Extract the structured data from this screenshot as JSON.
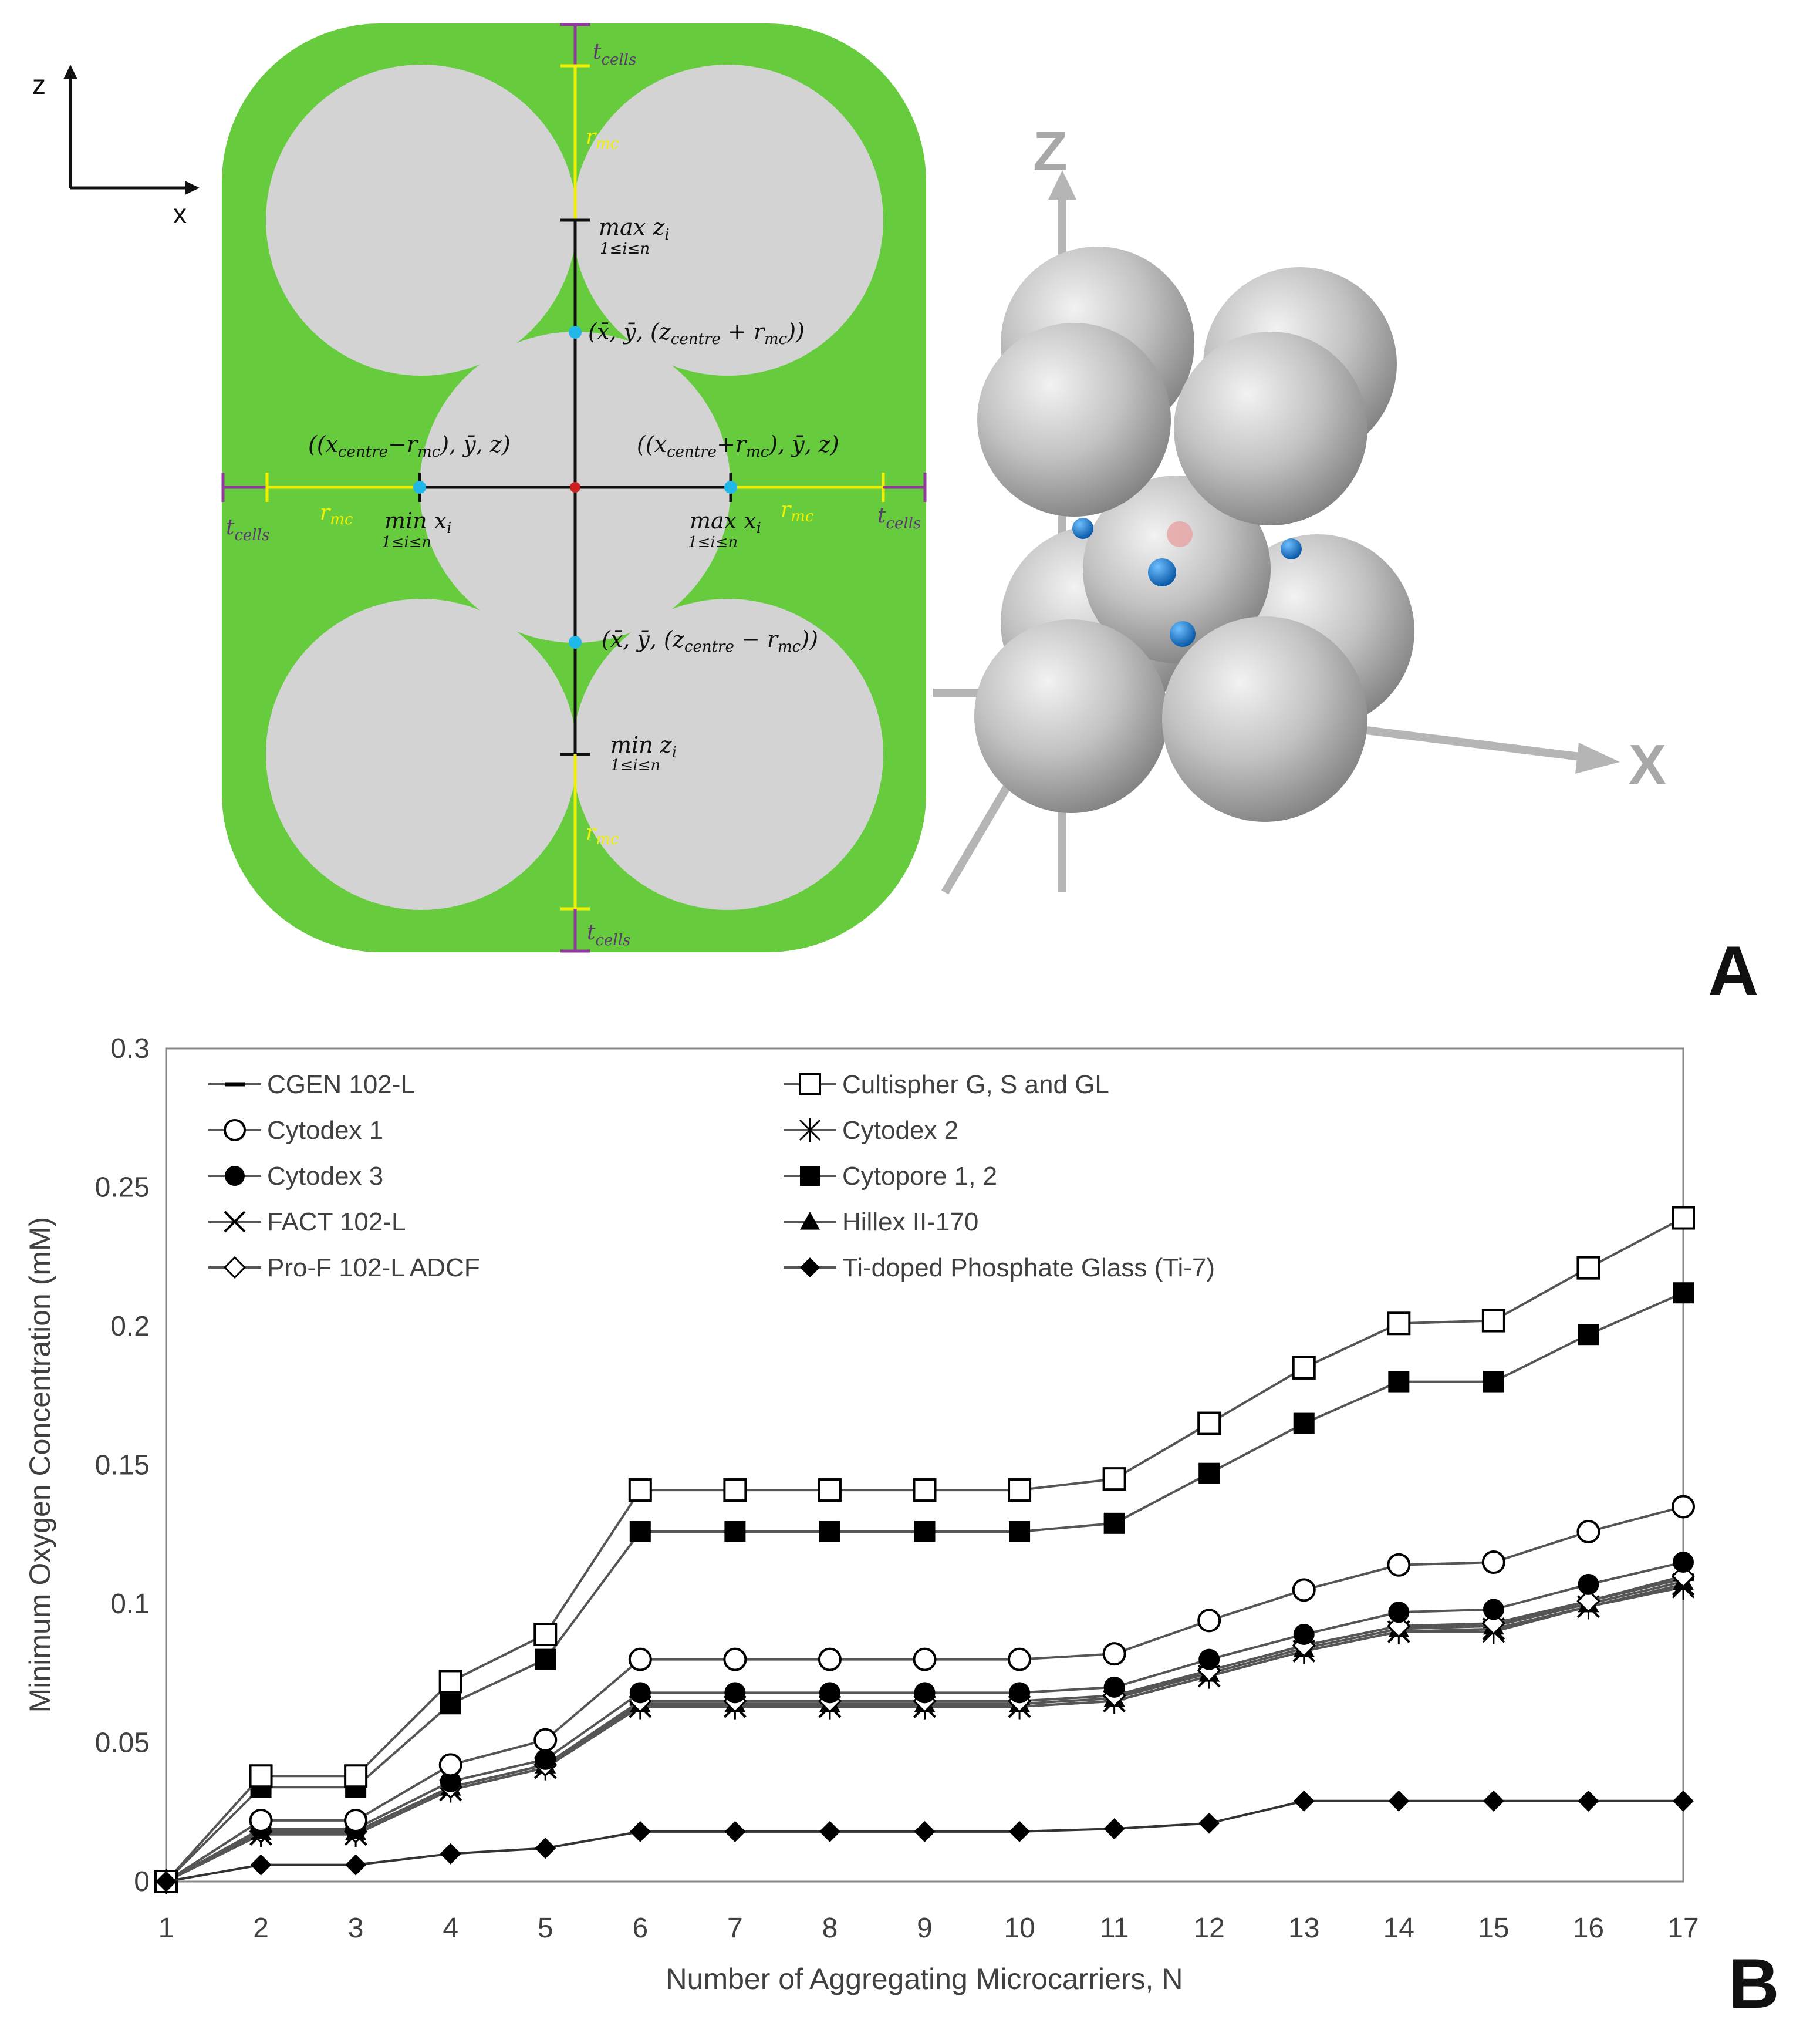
{
  "panel_a": {
    "label": "A",
    "axes_2d": {
      "z": "z",
      "x": "x"
    },
    "axes_3d": {
      "z": "Z",
      "x": "X"
    },
    "annotations": {
      "t_cells": "t",
      "t_cells_sub": "cells",
      "r_mc": "r",
      "r_mc_sub": "mc",
      "max_z_main": "max z",
      "max_z_sub": "i",
      "max_z_range": "1≤i≤n",
      "min_z_main": "min z",
      "min_z_sub": "i",
      "min_z_range": "1≤i≤n",
      "min_x_main": "min x",
      "min_x_sub": "i",
      "min_x_range": "1≤i≤n",
      "max_x_main": "max x",
      "max_x_sub": "i",
      "max_x_range": "1≤i≤n",
      "top_point": "(x̄, ȳ, (z",
      "top_point_sub": "centre",
      "top_point_tail": " + r",
      "top_point_end": "))",
      "bottom_point": "(x̄, ȳ, (z",
      "bottom_point_tail": " − r",
      "left_point": "((x",
      "left_point_mid": "−r",
      "left_point_end": "), ȳ, z)",
      "right_point": "((x",
      "right_point_mid": "+r",
      "right_point_end": "), ȳ, z)"
    },
    "colors": {
      "cells": "#66cc3e",
      "microcarrier": "#d3d3d3",
      "dimension_line": "#f0f000",
      "cell_thickness": "#8e3a9a",
      "point": "#1fb8e8",
      "centre": "#cc1f1f"
    }
  },
  "panel_b": {
    "label": "B"
  },
  "chart_data": {
    "type": "line",
    "title": "",
    "xlabel": "Number of Aggregating Microcarriers, N",
    "ylabel": "Minimum Oxygen Concentration (mM)",
    "x": [
      1,
      2,
      3,
      4,
      5,
      6,
      7,
      8,
      9,
      10,
      11,
      12,
      13,
      14,
      15,
      16,
      17
    ],
    "ylim": [
      0,
      0.3
    ],
    "yticks": [
      "0",
      "0.05",
      "0.1",
      "0.15",
      "0.2",
      "0.25",
      "0.3"
    ],
    "grid": false,
    "legend_position": "top-left, inside plot, two columns",
    "series": [
      {
        "name": "CGEN 102-L",
        "marker": "dash",
        "values": [
          0,
          0.018,
          0.018,
          0.034,
          0.042,
          0.064,
          0.064,
          0.064,
          0.064,
          0.064,
          0.066,
          0.076,
          0.085,
          0.092,
          0.092,
          0.101,
          0.109
        ]
      },
      {
        "name": "Cultispher G, S and GL",
        "marker": "open-square",
        "values": [
          0,
          0.038,
          0.038,
          0.072,
          0.089,
          0.141,
          0.141,
          0.141,
          0.141,
          0.141,
          0.145,
          0.165,
          0.185,
          0.201,
          0.202,
          0.221,
          0.239
        ]
      },
      {
        "name": "Cytodex 1",
        "marker": "open-circle",
        "values": [
          0,
          0.022,
          0.022,
          0.042,
          0.051,
          0.08,
          0.08,
          0.08,
          0.08,
          0.08,
          0.082,
          0.094,
          0.105,
          0.114,
          0.115,
          0.126,
          0.135
        ]
      },
      {
        "name": "Cytodex 2",
        "marker": "asterisk",
        "values": [
          0,
          0.017,
          0.017,
          0.033,
          0.041,
          0.063,
          0.063,
          0.063,
          0.063,
          0.063,
          0.065,
          0.074,
          0.083,
          0.09,
          0.09,
          0.099,
          0.106
        ]
      },
      {
        "name": "Cytodex 3",
        "marker": "filled-circle",
        "values": [
          0,
          0.019,
          0.019,
          0.036,
          0.044,
          0.068,
          0.068,
          0.068,
          0.068,
          0.068,
          0.07,
          0.08,
          0.089,
          0.097,
          0.098,
          0.107,
          0.115
        ]
      },
      {
        "name": "Cytopore 1, 2",
        "marker": "filled-square",
        "values": [
          0,
          0.034,
          0.034,
          0.064,
          0.08,
          0.126,
          0.126,
          0.126,
          0.126,
          0.126,
          0.129,
          0.147,
          0.165,
          0.18,
          0.18,
          0.197,
          0.212
        ]
      },
      {
        "name": "FACT 102-L",
        "marker": "x",
        "values": [
          0,
          0.017,
          0.017,
          0.033,
          0.041,
          0.063,
          0.063,
          0.063,
          0.063,
          0.063,
          0.065,
          0.074,
          0.083,
          0.09,
          0.091,
          0.099,
          0.107
        ]
      },
      {
        "name": "Hillex II-170",
        "marker": "filled-triangle",
        "values": [
          0,
          0.018,
          0.018,
          0.034,
          0.042,
          0.064,
          0.064,
          0.064,
          0.064,
          0.064,
          0.066,
          0.075,
          0.084,
          0.091,
          0.092,
          0.1,
          0.108
        ]
      },
      {
        "name": "Pro-F 102-L ADCF",
        "marker": "open-diamond",
        "values": [
          0,
          0.018,
          0.018,
          0.034,
          0.042,
          0.065,
          0.065,
          0.065,
          0.065,
          0.065,
          0.067,
          0.076,
          0.085,
          0.092,
          0.093,
          0.101,
          0.11
        ]
      },
      {
        "name": "Ti-doped Phosphate Glass (Ti-7)",
        "marker": "filled-diamond",
        "values": [
          0,
          0.006,
          0.006,
          0.01,
          0.012,
          0.018,
          0.018,
          0.018,
          0.018,
          0.018,
          0.019,
          0.021,
          0.029,
          0.029,
          0.029,
          0.029,
          0.029
        ]
      }
    ]
  }
}
